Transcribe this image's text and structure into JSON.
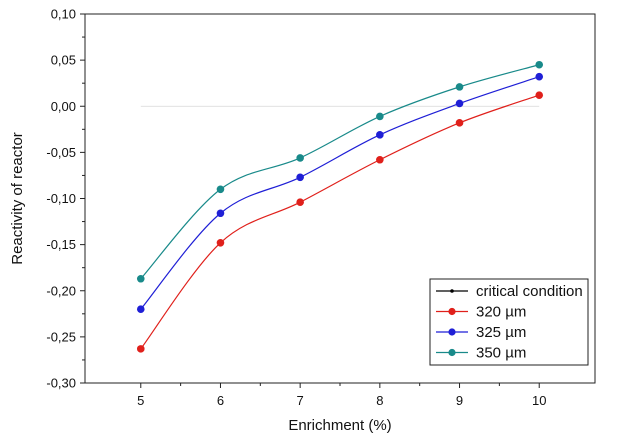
{
  "chart_data": {
    "type": "line",
    "title": "",
    "xlabel": "Enrichment (%)",
    "ylabel": "Reactivity of reactor",
    "x": [
      5,
      6,
      7,
      8,
      9,
      10
    ],
    "xlim": [
      4.3,
      10.7
    ],
    "ylim": [
      -0.3,
      0.1
    ],
    "x_ticks": [
      "5",
      "6",
      "7",
      "8",
      "9",
      "10"
    ],
    "y_ticks": [
      "0,10",
      "0,05",
      "0,00",
      "-0,05",
      "-0,10",
      "-0,15",
      "-0,20",
      "-0,25",
      "-0,30"
    ],
    "grid": false,
    "legend_position": "bottom-right",
    "critical_condition_value": 0.0,
    "series": [
      {
        "name": "critical condition",
        "color": "#000000",
        "values": [
          0,
          0,
          0,
          0,
          0,
          0
        ]
      },
      {
        "name": "320 µm",
        "color": "#e0201b",
        "values": [
          -0.263,
          -0.148,
          -0.104,
          -0.058,
          -0.018,
          0.012
        ]
      },
      {
        "name": "325 µm",
        "color": "#1f1fd6",
        "values": [
          -0.22,
          -0.116,
          -0.077,
          -0.031,
          0.003,
          0.032
        ]
      },
      {
        "name": "350 µm",
        "color": "#198a8a",
        "values": [
          -0.187,
          -0.09,
          -0.056,
          -0.011,
          0.021,
          0.045
        ]
      }
    ]
  }
}
